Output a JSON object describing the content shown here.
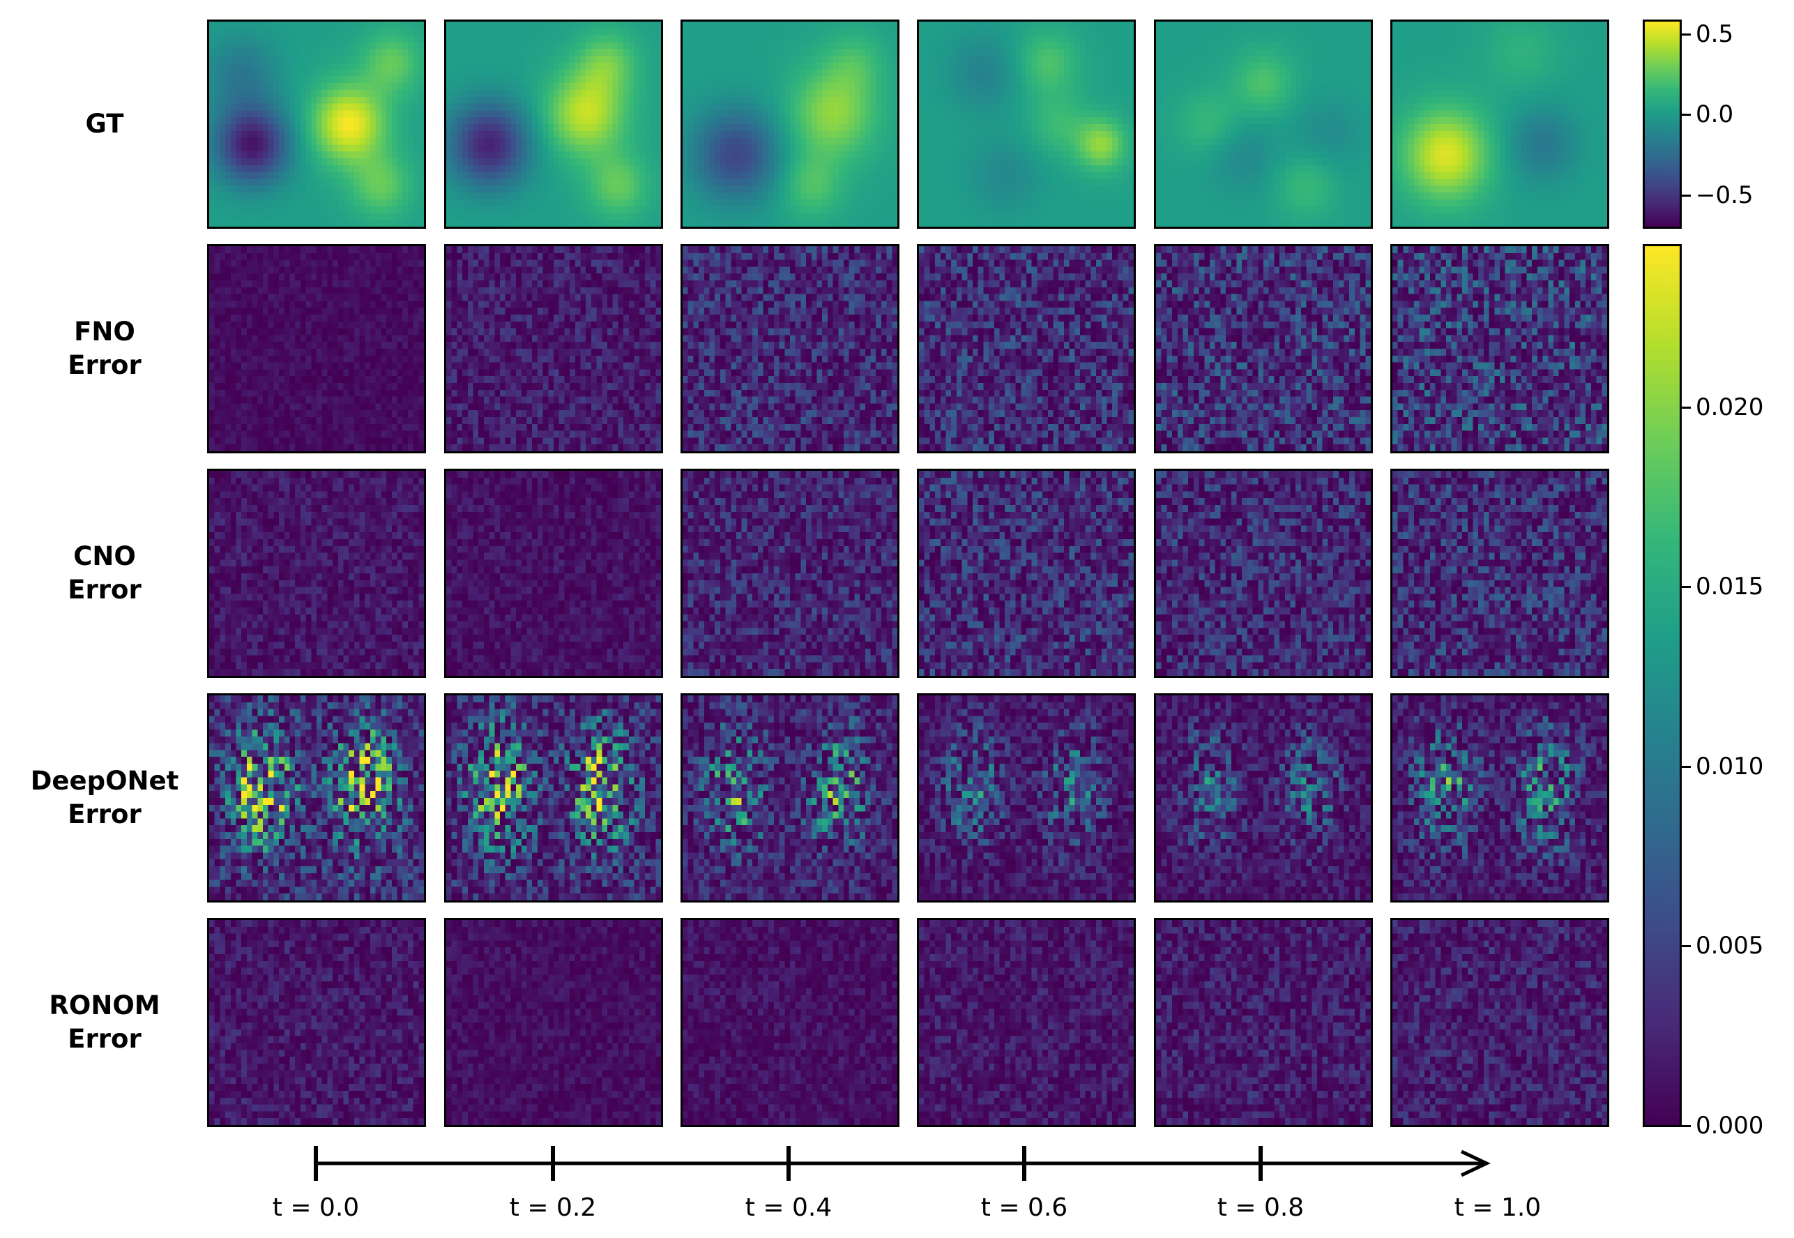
{
  "chart_data": {
    "type": "heatmap",
    "rows": [
      {
        "label_lines": [
          "GT"
        ],
        "kind": "field",
        "colorbar": "gt"
      },
      {
        "label_lines": [
          "FNO",
          "Error"
        ],
        "kind": "error",
        "colorbar": "error",
        "intensity": [
          0.05,
          0.12,
          0.18,
          0.2,
          0.22,
          0.26
        ]
      },
      {
        "label_lines": [
          "CNO",
          "Error"
        ],
        "kind": "error",
        "colorbar": "error",
        "intensity": [
          0.09,
          0.07,
          0.16,
          0.2,
          0.18,
          0.2
        ]
      },
      {
        "label_lines": [
          "DeepONet",
          "Error"
        ],
        "kind": "error",
        "colorbar": "error",
        "intensity": [
          0.55,
          0.5,
          0.38,
          0.26,
          0.25,
          0.33
        ]
      },
      {
        "label_lines": [
          "RONOM",
          "Error"
        ],
        "kind": "error",
        "colorbar": "error",
        "intensity": [
          0.1,
          0.06,
          0.07,
          0.1,
          0.12,
          0.13
        ]
      }
    ],
    "time_labels": [
      "t = 0.0",
      "t = 0.2",
      "t = 0.4",
      "t = 0.6",
      "t = 0.8",
      "t = 1.0"
    ],
    "times": [
      0.0,
      0.2,
      0.4,
      0.6,
      0.8,
      1.0
    ],
    "colormap": "viridis",
    "colorbars": {
      "gt": {
        "range": [
          -0.7,
          0.58
        ],
        "ticks": [
          0.5,
          0.0,
          -0.5
        ],
        "tick_labels": [
          "0.5",
          "0.0",
          "−0.5"
        ]
      },
      "error": {
        "range": [
          0.0,
          0.0245
        ],
        "ticks": [
          0.02,
          0.015,
          0.01,
          0.005,
          0.0
        ],
        "tick_labels": [
          "0.020",
          "0.015",
          "0.010",
          "0.005",
          "0.000"
        ]
      }
    },
    "gt_field": {
      "grid": [
        40,
        30
      ],
      "blobs_by_time": [
        [
          [
            0.2,
            0.6,
            -0.65,
            0.12
          ],
          [
            0.65,
            0.5,
            0.55,
            0.12
          ],
          [
            0.8,
            0.8,
            0.25,
            0.1
          ],
          [
            0.85,
            0.2,
            0.25,
            0.1
          ],
          [
            0.15,
            0.25,
            -0.2,
            0.12
          ]
        ],
        [
          [
            0.2,
            0.6,
            -0.6,
            0.13
          ],
          [
            0.65,
            0.45,
            0.45,
            0.13
          ],
          [
            0.8,
            0.8,
            0.25,
            0.1
          ],
          [
            0.75,
            0.2,
            0.25,
            0.1
          ]
        ],
        [
          [
            0.25,
            0.65,
            -0.45,
            0.14
          ],
          [
            0.7,
            0.45,
            0.35,
            0.14
          ],
          [
            0.6,
            0.8,
            0.2,
            0.1
          ],
          [
            0.8,
            0.2,
            0.15,
            0.1
          ]
        ],
        [
          [
            0.85,
            0.6,
            0.35,
            0.08
          ],
          [
            0.6,
            0.2,
            0.2,
            0.1
          ],
          [
            0.3,
            0.25,
            -0.15,
            0.12
          ],
          [
            0.4,
            0.75,
            -0.12,
            0.12
          ],
          [
            0.65,
            0.5,
            0.15,
            0.1
          ]
        ],
        [
          [
            0.5,
            0.3,
            0.2,
            0.1
          ],
          [
            0.4,
            0.65,
            -0.12,
            0.12
          ],
          [
            0.8,
            0.55,
            -0.1,
            0.12
          ],
          [
            0.25,
            0.5,
            0.15,
            0.1
          ],
          [
            0.7,
            0.8,
            0.15,
            0.1
          ]
        ],
        [
          [
            0.25,
            0.65,
            0.5,
            0.14
          ],
          [
            0.7,
            0.6,
            -0.2,
            0.12
          ],
          [
            0.6,
            0.15,
            0.1,
            0.12
          ]
        ]
      ]
    }
  }
}
